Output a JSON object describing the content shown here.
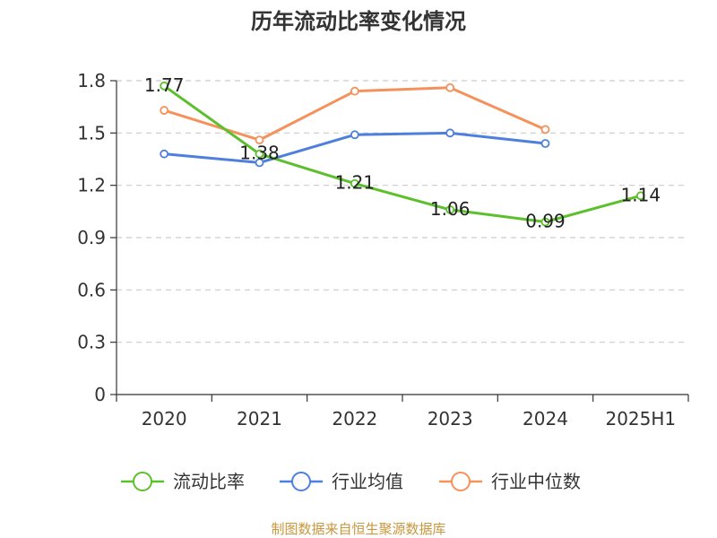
{
  "chart_data": {
    "type": "line",
    "title": "历年流动比率变化情况",
    "categories": [
      "2020",
      "2021",
      "2022",
      "2023",
      "2024",
      "2025H1"
    ],
    "yticks": [
      "0",
      "0.3",
      "0.6",
      "0.9",
      "1.2",
      "1.5",
      "1.8"
    ],
    "ylim": [
      0,
      1.8
    ],
    "grid": true,
    "legend_position": "bottom",
    "series": [
      {
        "name": "流动比率",
        "color": "#5cc02c",
        "values": [
          1.77,
          1.38,
          1.21,
          1.06,
          0.99,
          1.14
        ],
        "labels": [
          "1.77",
          "1.38",
          "1.21",
          "1.06",
          "0.99",
          "1.14"
        ]
      },
      {
        "name": "行业均值",
        "color": "#4f7fdc",
        "values": [
          1.38,
          1.33,
          1.49,
          1.5,
          1.44,
          null
        ]
      },
      {
        "name": "行业中位数",
        "color": "#f5915a",
        "values": [
          1.63,
          1.46,
          1.74,
          1.76,
          1.52,
          null
        ]
      }
    ],
    "source": "制图数据来自恒生聚源数据库"
  }
}
